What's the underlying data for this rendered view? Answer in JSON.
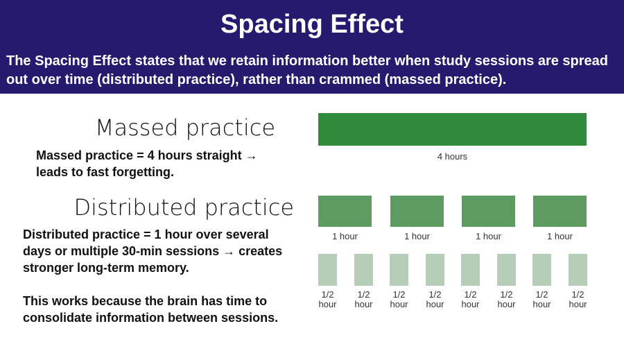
{
  "header": {
    "title": "Spacing Effect",
    "description": "The Spacing Effect states that we retain information better when study sessions are spread out over time (distributed practice), rather than crammed (massed practice)."
  },
  "massed": {
    "heading": "Massed practice",
    "text": "Massed practice = 4 hours straight → leads to fast forgetting."
  },
  "distributed": {
    "heading": "Distributed practice",
    "text": "Distributed practice = 1 hour over several days or multiple 30-min sessions → creates stronger long-term memory.",
    "note": "This works because the brain has time to consolidate information between sessions."
  },
  "diagram": {
    "massed_label": "4 hours",
    "hour_labels": [
      "1 hour",
      "1 hour",
      "1 hour",
      "1 hour"
    ],
    "half_hour_labels": [
      "1/2 hour",
      "1/2 hour",
      "1/2 hour",
      "1/2 hour",
      "1/2 hour",
      "1/2 hour",
      "1/2 hour",
      "1/2 hour"
    ]
  }
}
